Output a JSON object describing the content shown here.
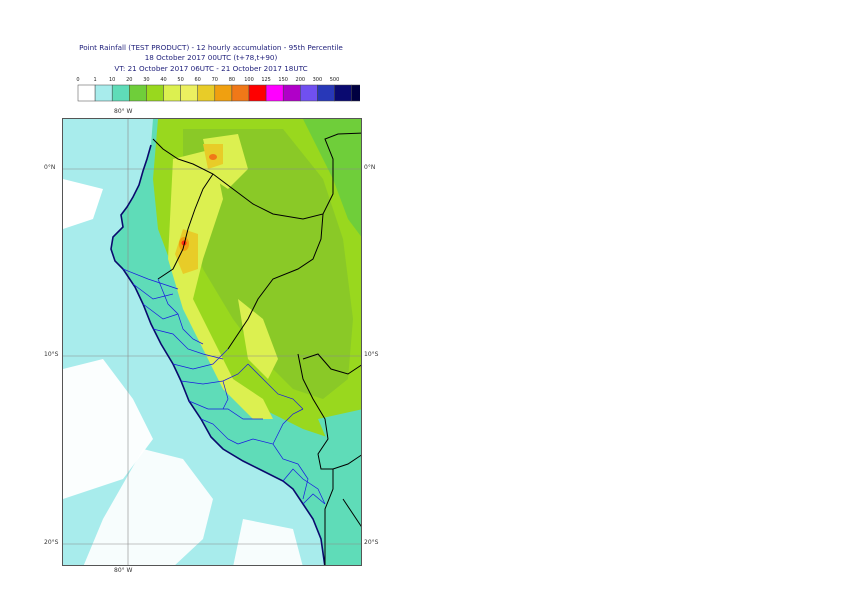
{
  "title": {
    "line1": "Point Rainfall (TEST PRODUCT) - 12 hourly accumulation - 95th Percentile",
    "line2": "18 October 2017 00UTC (t+78,t+90)",
    "line3": "VT: 21 October 2017 06UTC - 21 October 2017 18UTC"
  },
  "legend": {
    "ticks": [
      "0",
      "1",
      "10",
      "20",
      "30",
      "40",
      "50",
      "60",
      "70",
      "80",
      "100",
      "125",
      "150",
      "200",
      "300",
      "500"
    ],
    "colors": [
      "#ffffff",
      "#a8ecec",
      "#5fdcb8",
      "#6fce3a",
      "#99d81e",
      "#dcf050",
      "#ecf060",
      "#e8cc28",
      "#f0a010",
      "#f07818",
      "#ff0000",
      "#ff00ff",
      "#b000c8",
      "#7050f0",
      "#2838b8",
      "#0a0a70",
      "#000040"
    ]
  },
  "map": {
    "lon_top": "80° W",
    "lon_bottom": "80° W",
    "lat_labels": [
      "0°N",
      "10°S",
      "20°S"
    ],
    "coast_color": "#0a0a6e",
    "border_color": "#000000",
    "admin_color": "#1a1ae0"
  }
}
